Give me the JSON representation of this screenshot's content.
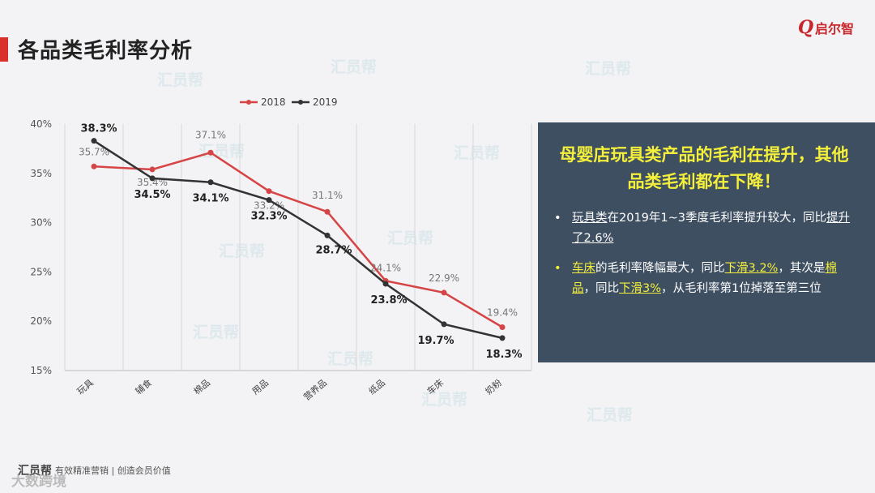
{
  "page": {
    "title": "各品类毛利率分析",
    "logo": {
      "mark": "Q",
      "text": "启尔智"
    },
    "watermark_text": "汇员帮",
    "footer": {
      "brand": "汇员帮",
      "slogan": "有效精准营销 | 创造会员价值"
    },
    "corner_watermark": "大数跨境"
  },
  "panel": {
    "headline": "母婴店玩具类产品的毛利在提升，其他品类毛利都在下降！",
    "bullet1": {
      "em1": "玩具类",
      "text1": "在2019年1~3季度毛利率提升较大，同比",
      "em2": "提升了2.6%"
    },
    "bullet2": {
      "em1": "车床",
      "text1": "的毛利率降幅最大，同比",
      "em2": "下滑3.2%",
      "text2": "，其次是",
      "em3": "棉品",
      "text3": "，同比",
      "em4": "下滑3%",
      "text4": "，从毛利率第1位掉落至第三位"
    },
    "colors": {
      "background": "#3f4f62",
      "highlight": "#f3ef3a"
    }
  },
  "chart_data": {
    "type": "line",
    "categories": [
      "玩具",
      "辅食",
      "棉品",
      "用品",
      "营养品",
      "纸品",
      "车床",
      "奶粉"
    ],
    "series": [
      {
        "name": "2018",
        "color": "#d64545",
        "values": [
          35.7,
          35.4,
          37.1,
          33.2,
          31.1,
          24.1,
          22.9,
          19.4
        ],
        "labels": [
          "35.7%",
          "35.4%",
          "37.1%",
          "33.2%",
          "31.1%",
          "24.1%",
          "22.9%",
          "19.4%"
        ]
      },
      {
        "name": "2019",
        "color": "#333333",
        "values": [
          38.3,
          34.5,
          34.1,
          32.3,
          28.7,
          23.8,
          19.7,
          18.3
        ],
        "labels": [
          "38.3%",
          "34.5%",
          "34.1%",
          "32.3%",
          "28.7%",
          "23.8%",
          "19.7%",
          "18.3%"
        ]
      }
    ],
    "yticks": [
      "40%",
      "35%",
      "30%",
      "25%",
      "20%",
      "15%"
    ],
    "ylim": [
      15,
      40
    ],
    "legend": "top-center",
    "grid": "vertical"
  }
}
